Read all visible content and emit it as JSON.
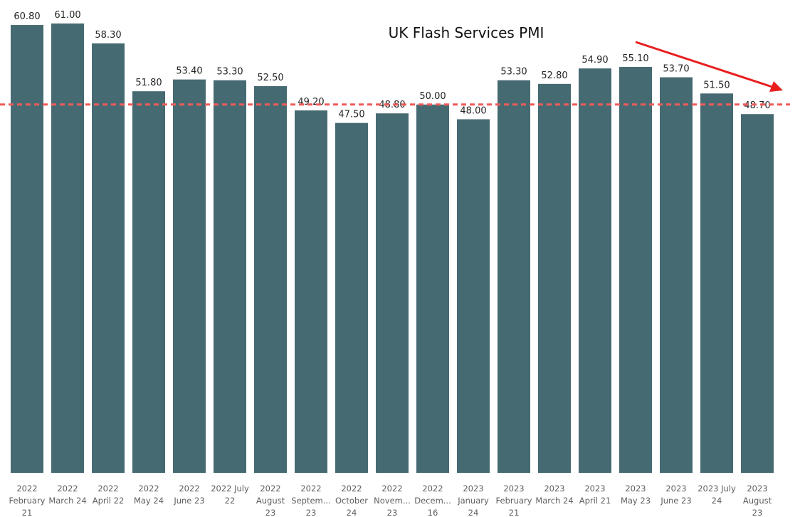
{
  "chart_data": {
    "type": "bar",
    "title": "UK Flash Services PMI",
    "xlabel": "",
    "ylabel": "",
    "ylim": [
      0,
      62
    ],
    "reference_line": 50,
    "categories": [
      [
        "2022",
        "February",
        "21"
      ],
      [
        "2022",
        "March 24"
      ],
      [
        "2022",
        "April 22"
      ],
      [
        "2022",
        "May 24"
      ],
      [
        "2022",
        "June 23"
      ],
      [
        "2022 July",
        "22"
      ],
      [
        "2022",
        "August",
        "23"
      ],
      [
        "2022",
        "Septem...",
        "23"
      ],
      [
        "2022",
        "October",
        "24"
      ],
      [
        "2022",
        "Novem...",
        "23"
      ],
      [
        "2022",
        "Decem...",
        "16"
      ],
      [
        "2023",
        "January",
        "24"
      ],
      [
        "2023",
        "February",
        "21"
      ],
      [
        "2023",
        "March 24"
      ],
      [
        "2023",
        "April 21"
      ],
      [
        "2023",
        "May 23"
      ],
      [
        "2023",
        "June 23"
      ],
      [
        "2023 July",
        "24"
      ],
      [
        "2023",
        "August",
        "23"
      ]
    ],
    "values": [
      60.8,
      61.0,
      58.3,
      51.8,
      53.4,
      53.3,
      52.5,
      49.2,
      47.5,
      48.8,
      50.0,
      48.0,
      53.3,
      52.8,
      54.9,
      55.1,
      53.7,
      51.5,
      48.7
    ],
    "value_labels": [
      "60.80",
      "61.00",
      "58.30",
      "51.80",
      "53.40",
      "53.30",
      "52.50",
      "49.20",
      "47.50",
      "48.80",
      "50.00",
      "48.00",
      "53.30",
      "52.80",
      "54.90",
      "55.10",
      "53.70",
      "51.50",
      "48.70"
    ],
    "colors": {
      "bar": "#466a72",
      "reference_line": "#f05a5a",
      "arrow": "#e81e1e"
    },
    "legend": "none",
    "grid": false
  }
}
